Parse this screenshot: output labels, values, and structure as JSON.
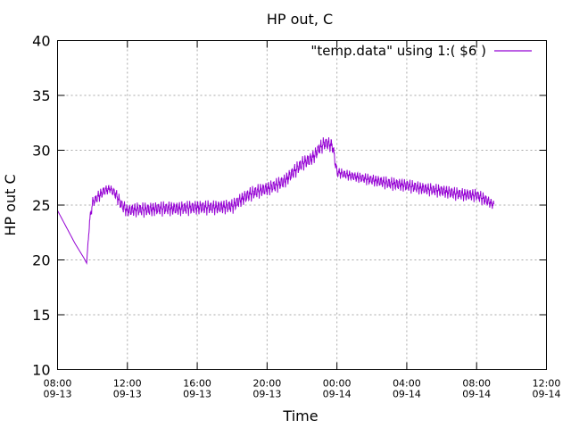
{
  "chart_data": {
    "type": "line",
    "title": "HP out, C",
    "xlabel": "Time",
    "ylabel": "HP out C",
    "xlim": [
      "2000-09-13 08:00",
      "2000-09-14 12:00"
    ],
    "ylim": [
      10,
      40
    ],
    "yticks": [
      10,
      15,
      20,
      25,
      30,
      35,
      40
    ],
    "xticks": [
      {
        "time": "08:00",
        "date": "09-13"
      },
      {
        "time": "12:00",
        "date": "09-13"
      },
      {
        "time": "16:00",
        "date": "09-13"
      },
      {
        "time": "20:00",
        "date": "09-13"
      },
      {
        "time": "00:00",
        "date": "09-14"
      },
      {
        "time": "04:00",
        "date": "09-14"
      },
      {
        "time": "08:00",
        "date": "09-14"
      },
      {
        "time": "12:00",
        "date": "09-14"
      }
    ],
    "grid": true,
    "legend_position": "top-right",
    "series": [
      {
        "name": "\"temp.data\" using 1:( $6 )",
        "color": "#9400d3",
        "x": [
          "09-13 08:00",
          "09-13 08:30",
          "09-13 09:00",
          "09-13 09:30",
          "09-13 09:40",
          "09-13 09:50",
          "09-13 10:00",
          "09-13 10:20",
          "09-13 10:40",
          "09-13 11:00",
          "09-13 11:20",
          "09-13 11:40",
          "09-13 12:00",
          "09-13 12:30",
          "09-13 13:00",
          "09-13 14:00",
          "09-13 15:00",
          "09-13 16:00",
          "09-13 17:00",
          "09-13 18:00",
          "09-13 18:30",
          "09-13 19:00",
          "09-13 19:30",
          "09-13 20:00",
          "09-13 20:30",
          "09-13 21:00",
          "09-13 21:30",
          "09-13 22:00",
          "09-13 22:30",
          "09-13 22:45",
          "09-13 23:00",
          "09-13 23:15",
          "09-13 23:30",
          "09-13 23:45",
          "09-14 00:00",
          "09-14 01:00",
          "09-14 02:00",
          "09-14 03:00",
          "09-14 04:00",
          "09-14 05:00",
          "09-14 06:00",
          "09-14 07:00",
          "09-14 08:00",
          "09-14 08:30",
          "09-14 09:00"
        ],
        "y": [
          24.5,
          23.0,
          21.5,
          20.2,
          19.7,
          23.5,
          25.2,
          25.8,
          26.3,
          26.5,
          26.0,
          25.0,
          24.5,
          24.6,
          24.6,
          24.7,
          24.7,
          24.8,
          24.8,
          24.9,
          25.5,
          26.0,
          26.3,
          26.5,
          26.8,
          27.2,
          28.0,
          28.8,
          29.2,
          29.6,
          30.2,
          30.6,
          30.6,
          30.4,
          28.0,
          27.6,
          27.3,
          27.0,
          26.8,
          26.5,
          26.3,
          26.0,
          25.9,
          25.5,
          25.0
        ],
        "ripple": [
          0.0,
          0.0,
          0.0,
          0.0,
          0.0,
          0.6,
          0.8,
          0.8,
          0.8,
          0.6,
          0.8,
          1.0,
          0.9,
          1.0,
          1.0,
          1.0,
          1.0,
          1.0,
          1.0,
          1.0,
          1.0,
          1.0,
          1.0,
          1.0,
          1.0,
          1.0,
          1.0,
          1.0,
          1.0,
          1.0,
          1.0,
          1.0,
          1.0,
          1.0,
          0.7,
          0.7,
          0.8,
          0.9,
          0.9,
          0.9,
          0.9,
          0.9,
          0.9,
          0.9,
          0.6
        ]
      }
    ]
  }
}
